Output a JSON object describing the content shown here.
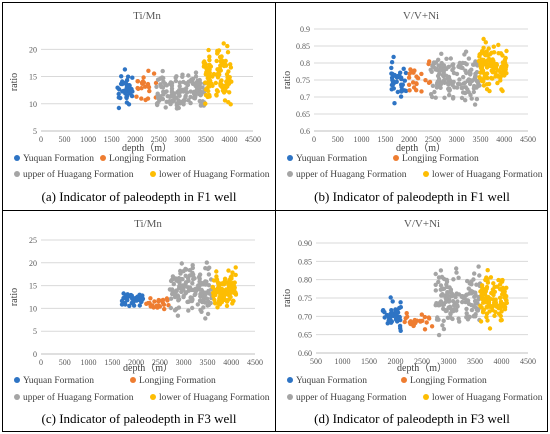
{
  "colors": {
    "yuquan": "#2e74c4",
    "longjing": "#ee7d31",
    "upper_huagang": "#a5a5a5",
    "lower_huagang": "#fdbd03",
    "grid": "#d9d9d9",
    "axis_text": "#595959"
  },
  "legend_labels": [
    "Yuquan Formation",
    "Longjing Formation",
    "upper of Huagang Formation",
    "lower of Huagang Formation"
  ],
  "panels": [
    {
      "caption": "(a) Indicator of paleodepth in F1 well",
      "chart_data": {
        "type": "scatter",
        "title": "Ti/Mn",
        "xlabel": "depth（m）",
        "ylabel": "ratio",
        "xlim": [
          0,
          4500
        ],
        "ylim": [
          5,
          23
        ],
        "xticks": [
          0,
          500,
          1000,
          1500,
          2000,
          2500,
          3000,
          3500,
          4000,
          4500
        ],
        "yticks": [
          5,
          10,
          15,
          20
        ],
        "grid": "horizontal",
        "legend": "bottom",
        "series": [
          {
            "name": "Yuquan Formation",
            "x_range": [
              1600,
              1950
            ],
            "y_range": [
              7,
              18
            ],
            "seed": 11,
            "n": 40
          },
          {
            "name": "Longjing Formation",
            "x_range": [
              2000,
              2450
            ],
            "y_range": [
              9,
              19
            ],
            "seed": 12,
            "n": 22
          },
          {
            "name": "upper of Huagang Formation",
            "x_range": [
              2450,
              3480
            ],
            "y_range": [
              7,
              17.5
            ],
            "seed": 13,
            "n": 150
          },
          {
            "name": "lower of Huagang Formation",
            "x_range": [
              3450,
              4050
            ],
            "y_range": [
              8,
              22.5
            ],
            "seed": 14,
            "n": 110
          }
        ]
      }
    },
    {
      "caption": "(b) Indicator of paleodepth in F1 well",
      "chart_data": {
        "type": "scatter",
        "title": "V/V+Ni",
        "xlabel": "depth（m）",
        "ylabel": "ratio",
        "xlim": [
          0,
          4500
        ],
        "ylim": [
          0.6,
          0.9
        ],
        "xticks": [
          0,
          500,
          1000,
          1500,
          2000,
          2500,
          3000,
          3500,
          4000,
          4500
        ],
        "yticks": [
          0.6,
          0.65,
          0.7,
          0.75,
          0.8,
          0.85,
          0.9
        ],
        "ytick_labels": [
          "0.6",
          "0.65",
          "0.7",
          "0.75",
          "0.8",
          "0.85",
          "0.9"
        ],
        "grid": "horizontal",
        "legend": "bottom",
        "series": [
          {
            "name": "Yuquan Formation",
            "x_range": [
              1600,
              1950
            ],
            "y_range": [
              0.67,
              0.83
            ],
            "seed": 21,
            "n": 40
          },
          {
            "name": "Longjing Formation",
            "x_range": [
              2000,
              2450
            ],
            "y_range": [
              0.68,
              0.83
            ],
            "seed": 22,
            "n": 22
          },
          {
            "name": "upper of Huagang Formation",
            "x_range": [
              2450,
              3480
            ],
            "y_range": [
              0.67,
              0.86
            ],
            "seed": 23,
            "n": 150
          },
          {
            "name": "lower of Huagang Formation",
            "x_range": [
              3450,
              4050
            ],
            "y_range": [
              0.7,
              0.88
            ],
            "seed": 24,
            "n": 110
          }
        ]
      }
    },
    {
      "caption": "(c) Indicator of paleodepth in F3 well",
      "chart_data": {
        "type": "scatter",
        "title": "Ti/Mn",
        "xlabel": "depth（m）",
        "ylabel": "ratio",
        "xlim": [
          0,
          4500
        ],
        "ylim": [
          0,
          25
        ],
        "xticks": [
          0,
          500,
          1000,
          1500,
          2000,
          2500,
          3000,
          3500,
          4000,
          4500
        ],
        "yticks": [
          0,
          5,
          10,
          15,
          20,
          25
        ],
        "grid": "horizontal",
        "legend": "bottom",
        "series": [
          {
            "name": "Yuquan Formation",
            "x_range": [
              1700,
              2150
            ],
            "y_range": [
              10,
              14
            ],
            "seed": 31,
            "n": 40
          },
          {
            "name": "Longjing Formation",
            "x_range": [
              2200,
              2700
            ],
            "y_range": [
              9,
              13.5
            ],
            "seed": 32,
            "n": 25
          },
          {
            "name": "upper of Huagang Formation",
            "x_range": [
              2700,
              3600
            ],
            "y_range": [
              7,
              21.5
            ],
            "seed": 33,
            "n": 150
          },
          {
            "name": "lower of Huagang Formation",
            "x_range": [
              3600,
              4100
            ],
            "y_range": [
              9,
              19.5
            ],
            "seed": 34,
            "n": 110
          }
        ]
      }
    },
    {
      "caption": "(d) Indicator of paleodepth in F3 well",
      "chart_data": {
        "type": "scatter",
        "title": "V/V+Ni",
        "xlabel": "depth（m）",
        "ylabel": "ratio",
        "xlim": [
          500,
          4500
        ],
        "ylim": [
          0.6,
          0.9
        ],
        "xticks": [
          500,
          1000,
          1500,
          2000,
          2500,
          3000,
          3500,
          4000,
          4500
        ],
        "yticks": [
          0.6,
          0.65,
          0.7,
          0.75,
          0.8,
          0.85,
          0.9
        ],
        "ytick_labels": [
          "0.60",
          "0.65",
          "0.70",
          "0.75",
          "0.80",
          "0.85",
          "0.90"
        ],
        "grid": "horizontal",
        "legend": "bottom",
        "series": [
          {
            "name": "Yuquan Formation",
            "x_range": [
              1750,
              2100
            ],
            "y_range": [
              0.65,
              0.76
            ],
            "seed": 41,
            "n": 40
          },
          {
            "name": "Longjing Formation",
            "x_range": [
              2150,
              2750
            ],
            "y_range": [
              0.65,
              0.72
            ],
            "seed": 42,
            "n": 25
          },
          {
            "name": "upper of Huagang Formation",
            "x_range": [
              2750,
              3600
            ],
            "y_range": [
              0.63,
              0.86
            ],
            "seed": 43,
            "n": 150
          },
          {
            "name": "lower of Huagang Formation",
            "x_range": [
              3600,
              4100
            ],
            "y_range": [
              0.65,
              0.84
            ],
            "seed": 44,
            "n": 110
          }
        ]
      }
    }
  ]
}
